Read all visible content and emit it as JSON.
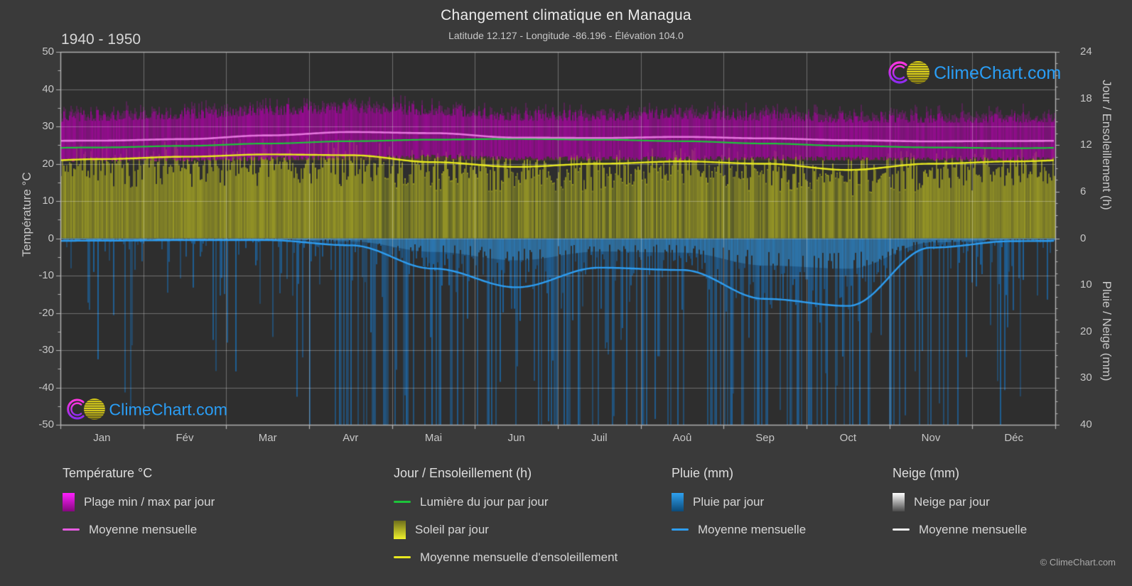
{
  "header": {
    "title": "Changement climatique en Managua",
    "subtitle": "Latitude 12.127 - Longitude -86.196 - Élévation 104.0",
    "period": "1940 - 1950"
  },
  "watermark": {
    "text": "ClimeChart.com"
  },
  "footer": {
    "copyright": "© ClimeChart.com"
  },
  "axes": {
    "left": {
      "label": "Température °C",
      "ticks": [
        50,
        40,
        30,
        20,
        10,
        0,
        -10,
        -20,
        -30,
        -40,
        -50
      ],
      "range": [
        -50,
        50
      ]
    },
    "right_top": {
      "label": "Jour / Ensoleillement (h)",
      "ticks": [
        24,
        18,
        12,
        6,
        0
      ],
      "range": [
        0,
        24
      ]
    },
    "right_bottom": {
      "label": "Pluie / Neige (mm)",
      "ticks": [
        10,
        20,
        30,
        40
      ],
      "range": [
        0,
        40
      ]
    },
    "x": {
      "months": [
        "Jan",
        "Fév",
        "Mar",
        "Avr",
        "Mai",
        "Jun",
        "Juil",
        "Aoû",
        "Sep",
        "Oct",
        "Nov",
        "Déc"
      ]
    }
  },
  "legend": {
    "groups": [
      {
        "title": "Température °C",
        "items": [
          {
            "label": "Plage min / max par jour",
            "swatch": "gradient-magenta"
          },
          {
            "label": "Moyenne mensuelle",
            "swatch": "line-magenta"
          }
        ]
      },
      {
        "title": "Jour / Ensoleillement (h)",
        "items": [
          {
            "label": "Lumière du jour par jour",
            "swatch": "line-green"
          },
          {
            "label": "Soleil par jour",
            "swatch": "gradient-yellow"
          },
          {
            "label": "Moyenne mensuelle d'ensoleillement",
            "swatch": "line-yellow"
          }
        ]
      },
      {
        "title": "Pluie (mm)",
        "items": [
          {
            "label": "Pluie par jour",
            "swatch": "gradient-blue"
          },
          {
            "label": "Moyenne mensuelle",
            "swatch": "line-blue"
          }
        ]
      },
      {
        "title": "Neige (mm)",
        "items": [
          {
            "label": "Neige par jour",
            "swatch": "gradient-white"
          },
          {
            "label": "Moyenne mensuelle",
            "swatch": "line-white"
          }
        ]
      }
    ]
  },
  "colors": {
    "background": "#3a3a3a",
    "plot_background": "#2e2e2e",
    "gridline": "rgba(255,255,255,0.30)",
    "axis": "#b4b4b4",
    "temp_band_fill": "#9e089a",
    "temp_mean_line": "#e575de",
    "daylight_line": "#1dc43a",
    "sun_fill": "#a8a824",
    "sun_mean_line": "#e8e820",
    "rain_fill": "#1c69aa",
    "rain_mean_line": "#2e9df0",
    "snow_fill": "#cccccc",
    "logo_text": "#2a9df4"
  },
  "chart_data": {
    "type": "area",
    "title": "Changement climatique en Managua",
    "subtitle": "Latitude 12.127 - Longitude -86.196 - Élévation 104.0",
    "period": "1940 - 1950",
    "categories": [
      "Jan",
      "Fév",
      "Mar",
      "Avr",
      "Mai",
      "Jun",
      "Juil",
      "Aoû",
      "Sep",
      "Oct",
      "Nov",
      "Déc"
    ],
    "temp_axis": {
      "label": "Température °C",
      "ylim": [
        -50,
        50
      ]
    },
    "sun_axis": {
      "label": "Jour / Ensoleillement (h)",
      "ylim": [
        0,
        24
      ]
    },
    "precip_axis": {
      "label": "Pluie / Neige (mm)",
      "ylim": [
        0,
        40
      ],
      "inverted": true
    },
    "series": [
      {
        "name": "temp_mean_monthly_c",
        "values": [
          26.2,
          26.6,
          27.6,
          28.5,
          28.2,
          27.0,
          26.9,
          27.2,
          26.8,
          26.3,
          26.0,
          26.1
        ]
      },
      {
        "name": "temp_daily_max_base_c",
        "values": [
          31.5,
          32.0,
          33.0,
          33.5,
          33.0,
          31.5,
          31.5,
          32.0,
          31.5,
          31.0,
          31.0,
          31.0
        ]
      },
      {
        "name": "temp_daily_min_base_c",
        "values": [
          21.8,
          21.8,
          22.0,
          22.5,
          22.5,
          22.0,
          22.0,
          22.0,
          22.0,
          22.0,
          21.8,
          21.8
        ]
      },
      {
        "name": "daylight_hours",
        "values": [
          11.7,
          11.9,
          12.2,
          12.5,
          12.7,
          12.8,
          12.7,
          12.5,
          12.2,
          11.9,
          11.7,
          11.6
        ]
      },
      {
        "name": "sunshine_mean_hours",
        "values": [
          10.2,
          10.5,
          10.8,
          10.7,
          9.8,
          9.2,
          9.6,
          9.9,
          9.6,
          8.8,
          9.6,
          9.9
        ]
      },
      {
        "name": "rain_mean_mm_per_day",
        "values": [
          0.5,
          0.4,
          0.4,
          1.5,
          6.5,
          10.5,
          6.3,
          6.8,
          13.0,
          14.5,
          2.0,
          0.6
        ]
      },
      {
        "name": "snow_mean_mm_per_day",
        "values": [
          0,
          0,
          0,
          0,
          0,
          0,
          0,
          0,
          0,
          0,
          0,
          0
        ]
      }
    ],
    "grid": true,
    "legend_position": "bottom"
  }
}
